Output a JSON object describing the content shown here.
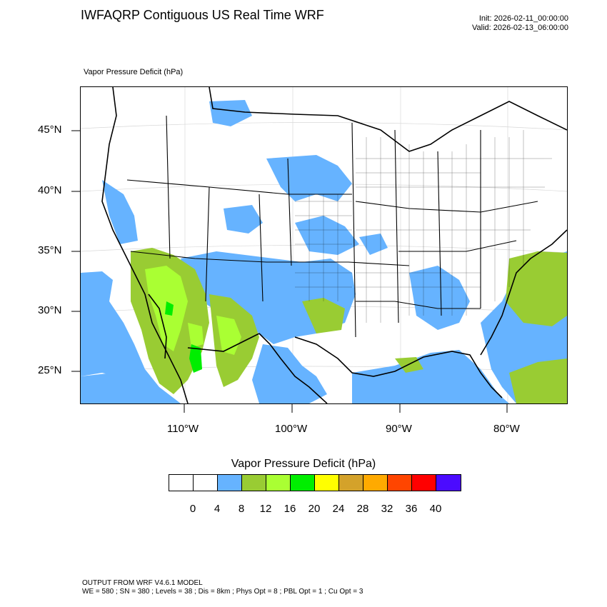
{
  "header": {
    "title": "IWFAQRP Contiguous US Real Time WRF",
    "init": "Init: 2026-02-11_00:00:00",
    "valid": "Valid: 2026-02-13_06:00:00"
  },
  "map": {
    "subtitle": "Vapor Pressure Deficit   (hPa)",
    "lat_labels": [
      "45°N",
      "40°N",
      "35°N",
      "30°N",
      "25°N"
    ],
    "lon_labels": [
      "110°W",
      "100°W",
      "90°W",
      "80°W"
    ],
    "colors": {
      "ocean_low": "#66b3ff",
      "land_low": "#66b3ff",
      "land_mid": "#99cc33",
      "land_high": "#aaff33",
      "land_peak": "#00ee00"
    }
  },
  "colorbar": {
    "title": "Vapor Pressure Deficit  (hPa)",
    "colors": [
      "#ffffff",
      "#ffffff",
      "#66b3ff",
      "#99cc33",
      "#aaff33",
      "#00ee00",
      "#ffff00",
      "#d4a22a",
      "#ffaa00",
      "#ff4500",
      "#ff0000",
      "#4b0bff"
    ],
    "labels": [
      "0",
      "4",
      "8",
      "12",
      "16",
      "20",
      "24",
      "28",
      "32",
      "36",
      "40"
    ]
  },
  "footer": {
    "line1": "OUTPUT FROM WRF V4.6.1 MODEL",
    "line2": "WE = 580 ; SN = 380 ; Levels = 38 ; Dis = 8km ; Phys Opt = 8 ; PBL Opt = 1 ; Cu Opt = 3"
  }
}
